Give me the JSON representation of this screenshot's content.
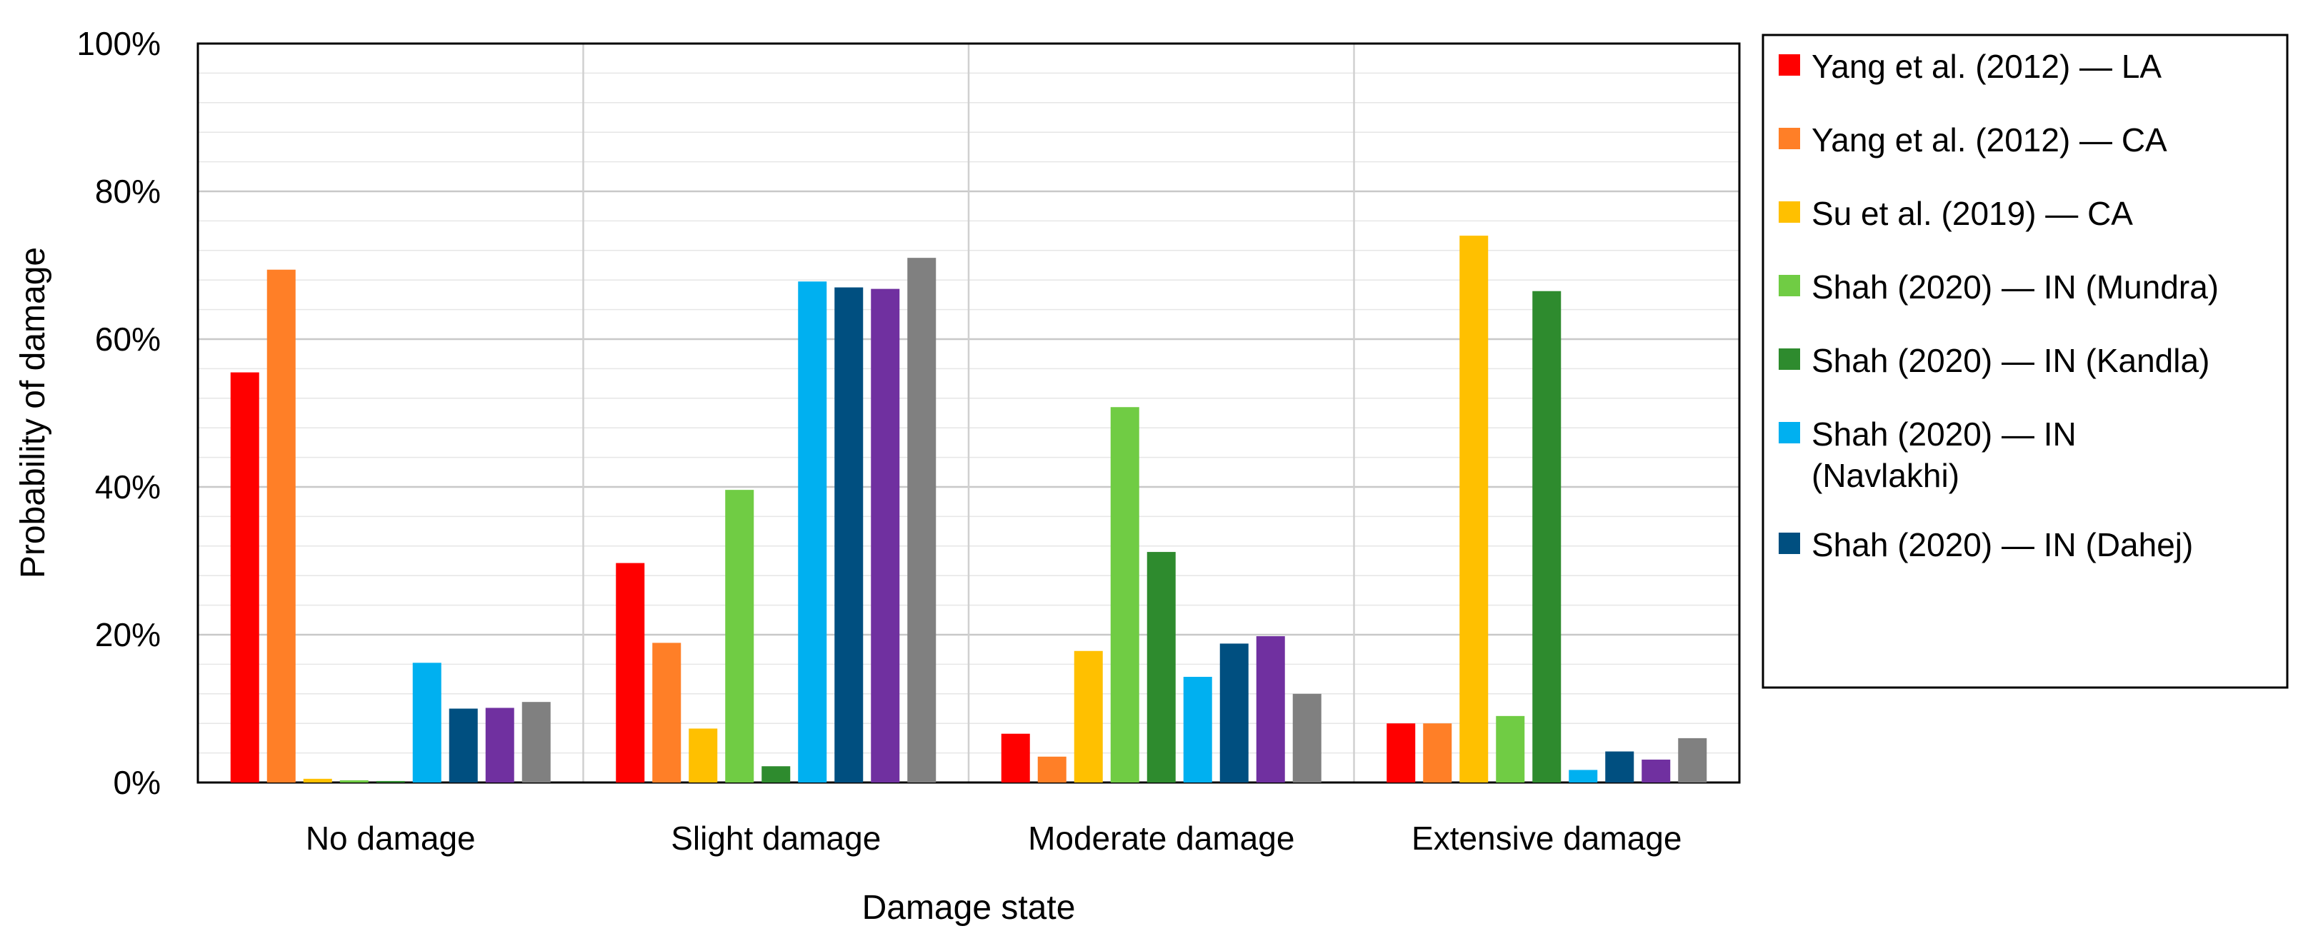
{
  "chart_data": {
    "type": "bar",
    "title": "",
    "xlabel": "Damage state",
    "ylabel": "Probability of damage",
    "ylim": [
      0,
      100
    ],
    "y_tick_step": 20,
    "y_tick_labels": [
      "0%",
      "20%",
      "40%",
      "60%",
      "80%",
      "100%"
    ],
    "grid": true,
    "legend_position": "right",
    "categories": [
      "No damage",
      "Slight damage",
      "Moderate damage",
      "Extensive damage"
    ],
    "series": [
      {
        "name": "Yang et al. (2012) — LA",
        "legend_lines": [
          "Yang et al. (2012) — LA"
        ],
        "color": "#ff0000",
        "in_legend": true,
        "values": [
          55.5,
          29.7,
          6.6,
          8.0
        ]
      },
      {
        "name": "Yang et al. (2012) — CA",
        "legend_lines": [
          "Yang et al. (2012) — CA"
        ],
        "color": "#ff7f27",
        "in_legend": true,
        "values": [
          69.4,
          18.9,
          3.5,
          8.0
        ]
      },
      {
        "name": "Su et al. (2019) — CA",
        "legend_lines": [
          "Su et al. (2019) — CA"
        ],
        "color": "#ffc000",
        "in_legend": true,
        "values": [
          0.5,
          7.3,
          17.8,
          74.0
        ]
      },
      {
        "name": "Shah (2020) — IN (Mundra)",
        "legend_lines": [
          "Shah (2020) — IN (Mundra)"
        ],
        "color": "#70cc44",
        "in_legend": true,
        "values": [
          0.3,
          39.6,
          50.8,
          9.0
        ]
      },
      {
        "name": "Shah (2020) — IN (Kandla)",
        "legend_lines": [
          "Shah (2020) — IN (Kandla)"
        ],
        "color": "#2e8b2e",
        "in_legend": true,
        "values": [
          0.2,
          2.2,
          31.2,
          66.5
        ]
      },
      {
        "name": "Shah (2020) — IN (Navlakhi)",
        "legend_lines": [
          "Shah (2020) — IN",
          "(Navlakhi)"
        ],
        "color": "#00b0f0",
        "in_legend": true,
        "values": [
          16.2,
          67.8,
          14.3,
          1.7
        ]
      },
      {
        "name": "Shah (2020) — IN (Dahej)",
        "legend_lines": [
          "Shah (2020) — IN (Dahej)"
        ],
        "color": "#004f80",
        "in_legend": true,
        "values": [
          10.0,
          67.0,
          18.8,
          4.2
        ]
      },
      {
        "name": "series-8",
        "legend_lines": [],
        "color": "#7030a0",
        "in_legend": false,
        "values": [
          10.1,
          66.8,
          19.8,
          3.1
        ]
      },
      {
        "name": "series-9",
        "legend_lines": [],
        "color": "#808080",
        "in_legend": false,
        "values": [
          10.9,
          71.0,
          12.0,
          6.0
        ]
      }
    ]
  }
}
